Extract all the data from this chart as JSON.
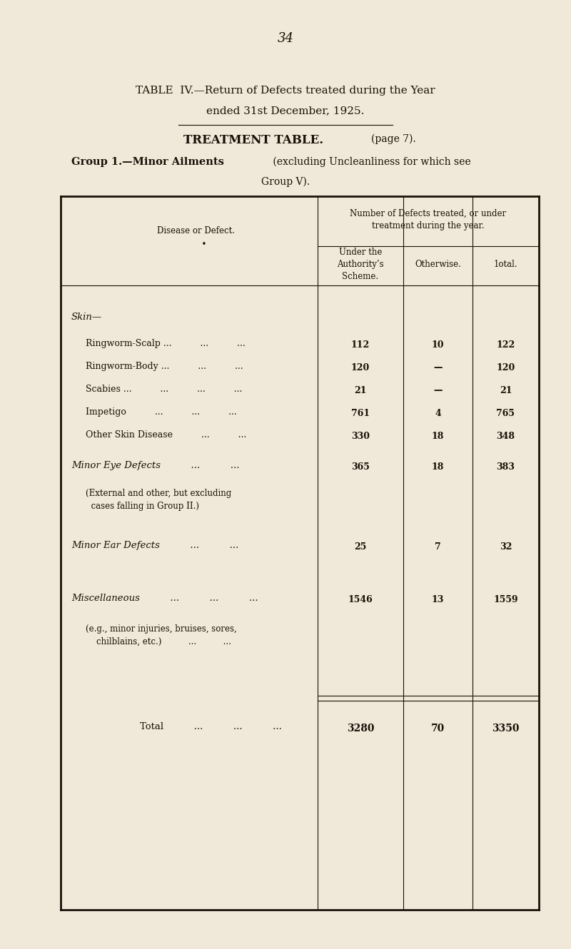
{
  "page_number": "34",
  "title_line1": "TABLE  IV.—Return of Defects treated during the Year",
  "title_line2": "ended 31st December, 1925.",
  "subtitle": "TREATMENT TABLE.",
  "subtitle_page": "(page 7).",
  "group_bold": "Group 1.—Minor Ailments",
  "group_rest": " (excluding Uncleanliness for which see",
  "group_line2": "Group V).",
  "col_header_main": "Number of Defects treated, or under\ntreatment during the year.",
  "col1_header": "Under the\nAuthority’s\nScheme.",
  "col2_header": "Otherwise.",
  "col3_header": "1otal.",
  "rows": [
    {
      "label": "Ringworm-Scalp ...          ...          ...",
      "col1": "112",
      "col2": "10",
      "col3": "122"
    },
    {
      "label": "Ringworm-Body ...          ...          ...",
      "col1": "120",
      "col2": "—",
      "col3": "120"
    },
    {
      "label": "Scabies ...          ...          ...          ...",
      "col1": "21",
      "col2": "—",
      "col3": "21"
    },
    {
      "label": "Impetigo          ...          ...          ...",
      "col1": "761",
      "col2": "4",
      "col3": "765"
    },
    {
      "label": "Other Skin Disease          ...          ...",
      "col1": "330",
      "col2": "18",
      "col3": "348"
    }
  ],
  "minor_eye_col1": "365",
  "minor_eye_col2": "18",
  "minor_eye_col3": "383",
  "minor_ear_col1": "25",
  "minor_ear_col2": "7",
  "minor_ear_col3": "32",
  "misc_col1": "1546",
  "misc_col2": "13",
  "misc_col3": "1559",
  "total_col1": "3280",
  "total_col2": "70",
  "total_col3": "3350",
  "bg_color": "#f0e8d8",
  "text_color": "#1a1008"
}
